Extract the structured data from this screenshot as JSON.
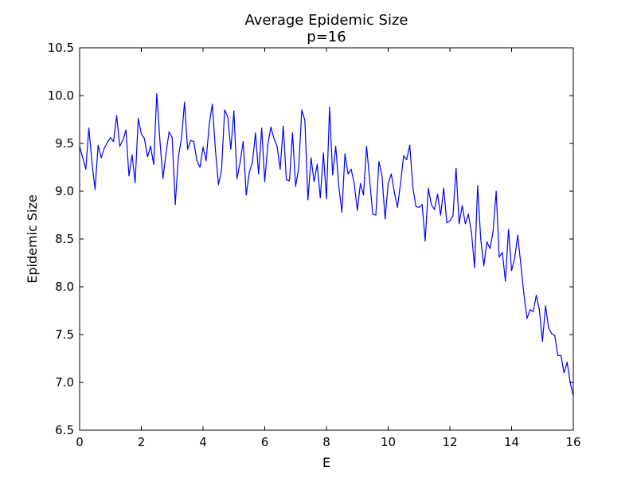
{
  "chart_data": {
    "type": "line",
    "title": "Average Epidemic Size",
    "subtitle": "p=16",
    "xlabel": "E",
    "ylabel": "Epidemic Size",
    "xlim": [
      0,
      16
    ],
    "ylim": [
      6.5,
      10.5
    ],
    "xticks": [
      0,
      2,
      4,
      6,
      8,
      10,
      12,
      14,
      16
    ],
    "yticks": [
      6.5,
      7.0,
      7.5,
      8.0,
      8.5,
      9.0,
      9.5,
      10.0,
      10.5
    ],
    "xtick_labels": [
      "0",
      "2",
      "4",
      "6",
      "8",
      "10",
      "12",
      "14",
      "16"
    ],
    "ytick_labels": [
      "6.5",
      "7.0",
      "7.5",
      "8.0",
      "8.5",
      "9.0",
      "9.5",
      "10.0",
      "10.5"
    ],
    "grid": false,
    "series": [
      {
        "color": "#0000ff",
        "x": [
          0.0,
          0.1,
          0.2,
          0.3,
          0.4,
          0.5,
          0.6,
          0.7,
          0.8,
          0.9,
          1.0,
          1.1,
          1.2,
          1.3,
          1.4,
          1.5,
          1.6,
          1.7,
          1.8,
          1.9,
          2.0,
          2.1,
          2.2,
          2.3,
          2.4,
          2.5,
          2.6,
          2.7,
          2.8,
          2.9,
          3.0,
          3.1,
          3.2,
          3.3,
          3.4,
          3.5,
          3.6,
          3.7,
          3.8,
          3.9,
          4.0,
          4.1,
          4.2,
          4.3,
          4.4,
          4.5,
          4.6,
          4.7,
          4.8,
          4.9,
          5.0,
          5.1,
          5.2,
          5.3,
          5.4,
          5.5,
          5.6,
          5.7,
          5.8,
          5.9,
          6.0,
          6.1,
          6.2,
          6.3,
          6.4,
          6.5,
          6.6,
          6.7,
          6.8,
          6.9,
          7.0,
          7.1,
          7.2,
          7.3,
          7.4,
          7.5,
          7.6,
          7.7,
          7.8,
          7.9,
          8.0,
          8.1,
          8.2,
          8.3,
          8.4,
          8.5,
          8.6,
          8.7,
          8.8,
          8.9,
          9.0,
          9.1,
          9.2,
          9.3,
          9.4,
          9.5,
          9.6,
          9.7,
          9.8,
          9.9,
          10.0,
          10.1,
          10.2,
          10.3,
          10.4,
          10.5,
          10.6,
          10.7,
          10.8,
          10.9,
          11.0,
          11.1,
          11.2,
          11.3,
          11.4,
          11.5,
          11.6,
          11.7,
          11.8,
          11.9,
          12.0,
          12.1,
          12.2,
          12.3,
          12.4,
          12.5,
          12.6,
          12.7,
          12.8,
          12.9,
          13.0,
          13.1,
          13.2,
          13.3,
          13.4,
          13.5,
          13.6,
          13.7,
          13.8,
          13.9,
          14.0,
          14.1,
          14.2,
          14.3,
          14.4,
          14.5,
          14.6,
          14.7,
          14.8,
          14.9,
          15.0,
          15.1,
          15.2,
          15.3,
          15.4,
          15.5,
          15.6,
          15.7,
          15.8,
          15.9,
          16.0
        ],
        "y": [
          9.47,
          9.35,
          9.23,
          9.66,
          9.3,
          9.02,
          9.48,
          9.35,
          9.45,
          9.51,
          9.56,
          9.52,
          9.79,
          9.47,
          9.53,
          9.64,
          9.16,
          9.38,
          9.09,
          9.76,
          9.6,
          9.55,
          9.36,
          9.47,
          9.28,
          10.02,
          9.54,
          9.13,
          9.4,
          9.62,
          9.56,
          8.86,
          9.36,
          9.55,
          9.93,
          9.44,
          9.53,
          9.52,
          9.32,
          9.25,
          9.46,
          9.32,
          9.7,
          9.91,
          9.44,
          9.07,
          9.22,
          9.85,
          9.78,
          9.44,
          9.84,
          9.13,
          9.3,
          9.52,
          8.96,
          9.2,
          9.3,
          9.61,
          9.18,
          9.66,
          9.1,
          9.49,
          9.67,
          9.55,
          9.47,
          9.23,
          9.68,
          9.12,
          9.11,
          9.61,
          9.05,
          9.24,
          9.85,
          9.74,
          8.91,
          9.35,
          9.1,
          9.28,
          8.93,
          9.4,
          8.92,
          9.88,
          9.17,
          9.47,
          9.05,
          8.78,
          9.39,
          9.18,
          9.23,
          9.08,
          8.8,
          9.08,
          8.96,
          9.47,
          9.12,
          8.76,
          8.75,
          9.31,
          9.16,
          8.71,
          9.08,
          9.18,
          8.99,
          8.83,
          9.08,
          9.37,
          9.33,
          9.48,
          9.04,
          8.84,
          8.83,
          8.86,
          8.48,
          9.03,
          8.86,
          8.81,
          8.97,
          8.75,
          9.03,
          8.67,
          8.69,
          8.74,
          9.24,
          8.66,
          8.85,
          8.66,
          8.76,
          8.57,
          8.2,
          9.06,
          8.5,
          8.22,
          8.47,
          8.4,
          8.58,
          9.0,
          8.31,
          8.36,
          8.06,
          8.6,
          8.17,
          8.3,
          8.54,
          8.23,
          7.92,
          7.67,
          7.76,
          7.74,
          7.91,
          7.76,
          7.43,
          7.8,
          7.57,
          7.51,
          7.49,
          7.28,
          7.28,
          7.1,
          7.21,
          7.0,
          6.86
        ]
      }
    ]
  }
}
